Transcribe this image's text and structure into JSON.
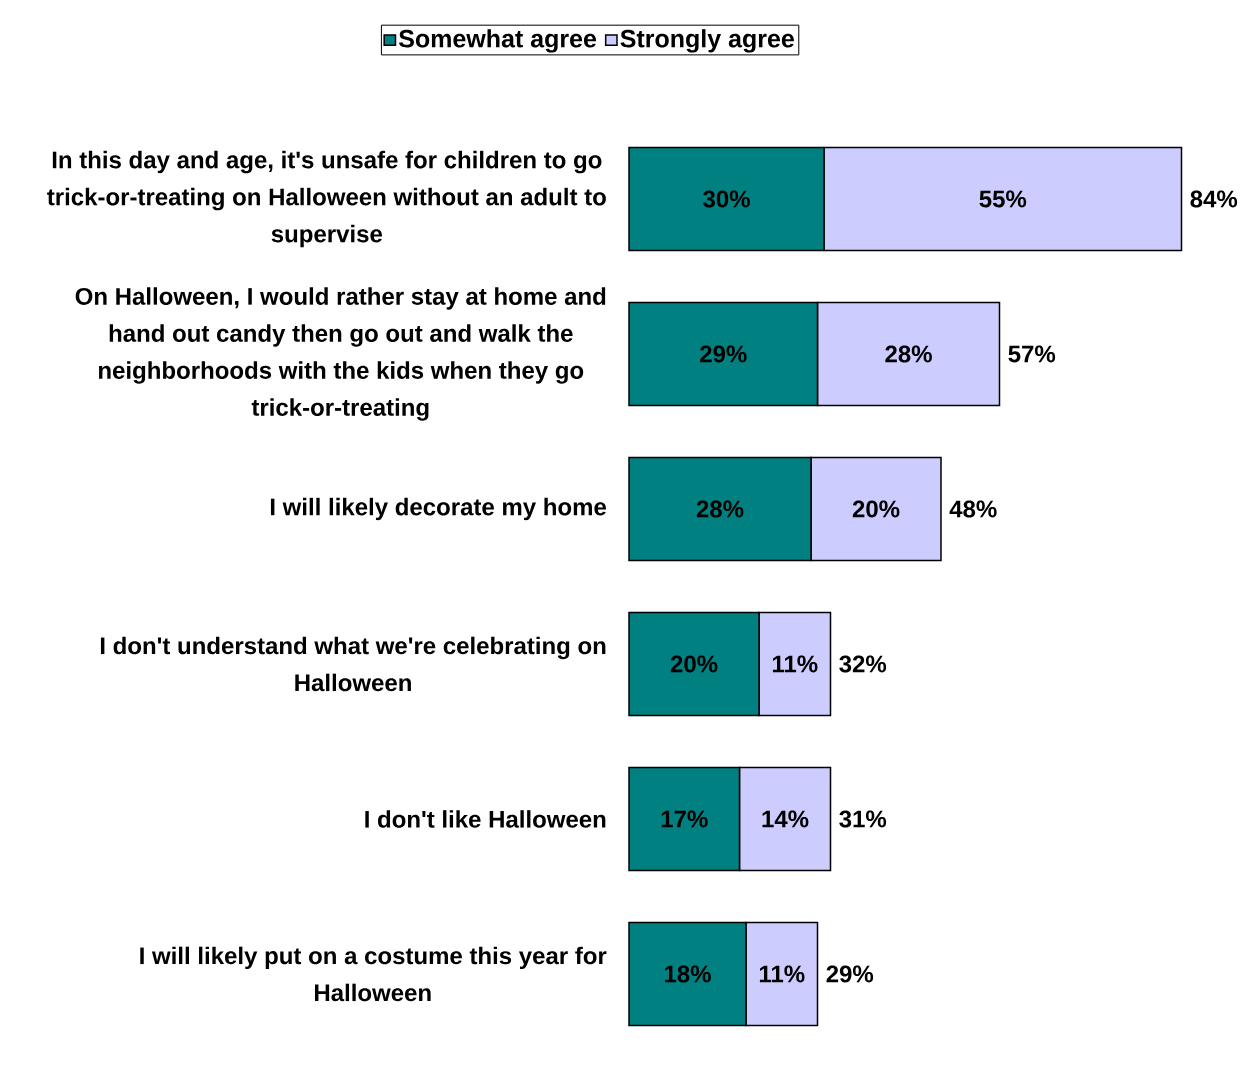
{
  "chart_data": {
    "type": "bar",
    "orientation": "horizontal",
    "stacked": true,
    "legend": "top",
    "categories": [
      "In this day and age, it's unsafe for children to go trick-or-treating on Halloween without an adult to supervise",
      "On Halloween, I would rather stay at home and hand out candy then go out and walk the neighborhoods with the kids when they go trick-or-treating",
      "I will likely decorate my home",
      "I don't understand what we're celebrating on Halloween",
      "I don't like Halloween",
      "I will likely put on a costume this year for Halloween"
    ],
    "series": [
      {
        "name": "Somewhat agree",
        "color": "#008080",
        "values": [
          30,
          29,
          28,
          20,
          17,
          18
        ],
        "value_labels": [
          "30%",
          "29%",
          "28%",
          "20%",
          "17%",
          "18%"
        ]
      },
      {
        "name": "Strongly agree",
        "color": "#ccccff",
        "values": [
          55,
          28,
          20,
          11,
          14,
          11
        ],
        "value_labels": [
          "55%",
          "28%",
          "20%",
          "11%",
          "14%",
          "11%"
        ]
      }
    ],
    "totals": [
      "84%",
      "57%",
      "48%",
      "32%",
      "31%",
      "29%"
    ]
  }
}
